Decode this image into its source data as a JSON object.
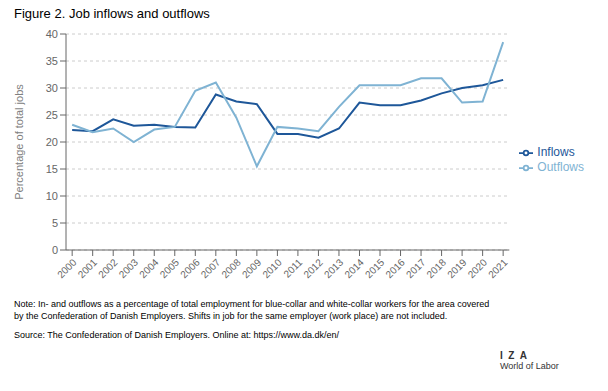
{
  "chart_data": {
    "type": "line",
    "title": "Figure 2. Job inflows and outflows",
    "ylabel": "Percentage of total jobs",
    "x": [
      2000,
      2001,
      2002,
      2003,
      2004,
      2005,
      2006,
      2007,
      2008,
      2009,
      2010,
      2011,
      2012,
      2013,
      2014,
      2015,
      2016,
      2017,
      2018,
      2019,
      2020,
      2021
    ],
    "xlim": [
      1999.7,
      2021.3
    ],
    "xticks": [
      2000,
      2001,
      2002,
      2003,
      2004,
      2005,
      2006,
      2007,
      2008,
      2009,
      2010,
      2011,
      2012,
      2013,
      2014,
      2015,
      2016,
      2017,
      2018,
      2019,
      2020,
      2021
    ],
    "series": [
      {
        "name": "Inflows",
        "color": "#1e5799",
        "values": [
          22.2,
          22.0,
          24.2,
          23.0,
          23.2,
          22.8,
          22.7,
          28.8,
          27.5,
          27.0,
          21.5,
          21.5,
          20.8,
          22.5,
          27.3,
          26.8,
          26.8,
          27.7,
          29.0,
          30.0,
          30.5,
          31.5
        ]
      },
      {
        "name": "Outflows",
        "color": "#7fb3d3",
        "values": [
          23.2,
          21.8,
          22.5,
          20.0,
          22.3,
          22.8,
          29.5,
          31.0,
          24.5,
          15.5,
          22.8,
          22.5,
          22.0,
          26.5,
          30.5,
          30.5,
          30.5,
          31.8,
          31.8,
          27.3,
          27.5,
          38.5
        ]
      }
    ],
    "ylim": [
      0,
      40
    ],
    "yticks": [
      0,
      5,
      10,
      15,
      20,
      25,
      30,
      35,
      40
    ],
    "grid": true,
    "legend": "right",
    "annotations": [
      "Note: In- and outflows as a percentage of total employment for blue-collar and white-collar workers for the area covered\nby the Confederation of Danish Employers. Shifts in job for the same employer (work place) are not included.",
      "Source: The Confederation of Danish Employers. Online at: https://www.da.dk/en/",
      "I  Z  A",
      "World of Labor"
    ]
  }
}
